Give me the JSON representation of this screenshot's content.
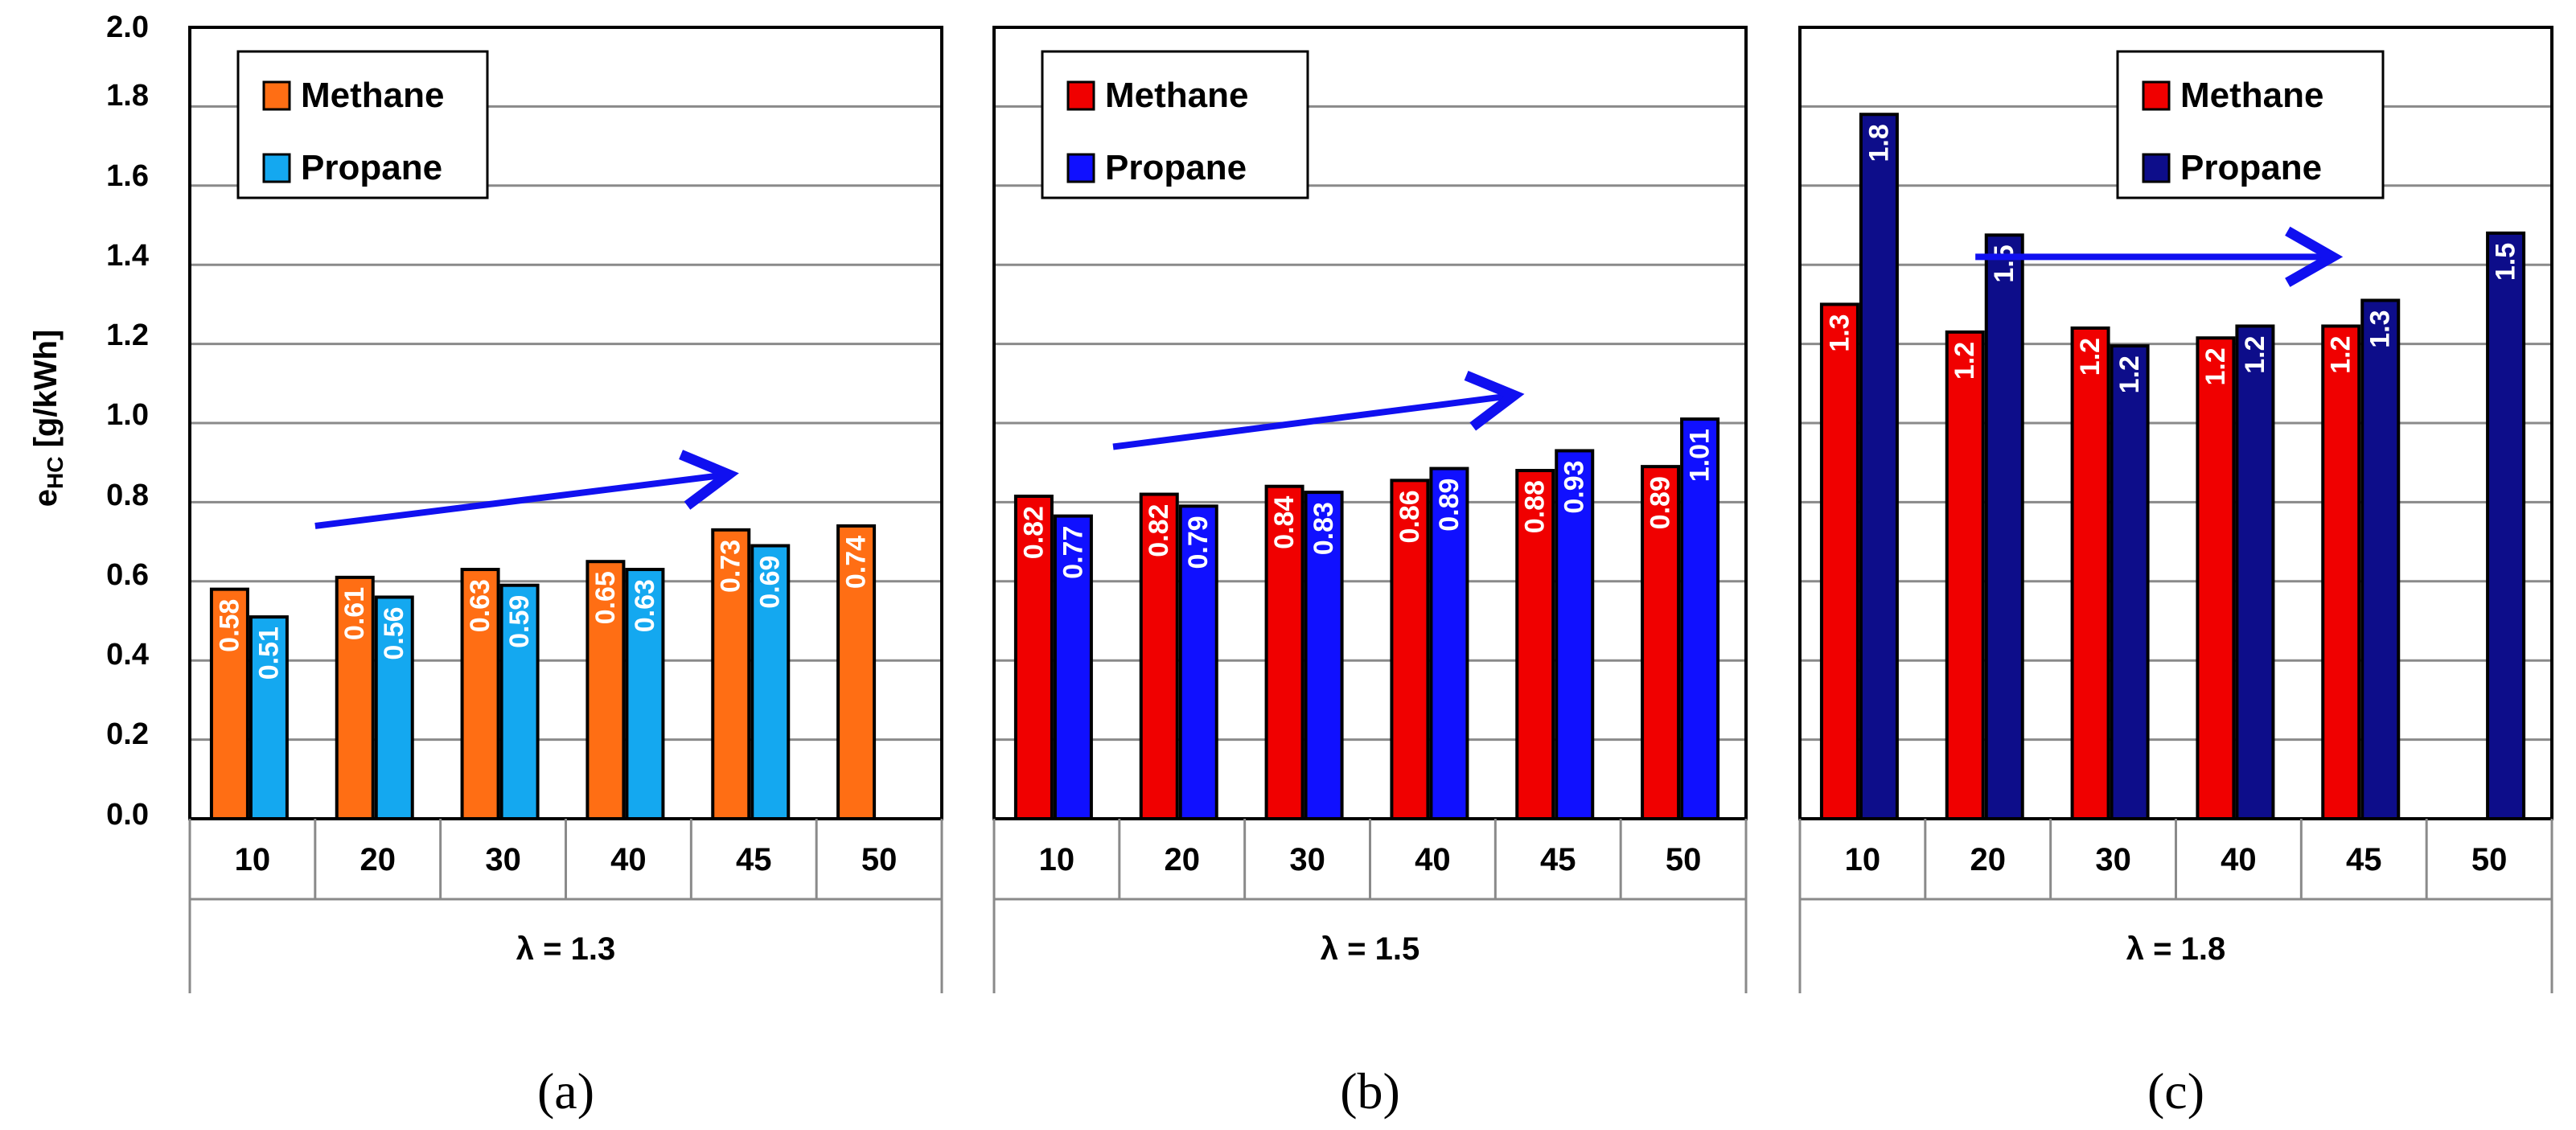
{
  "colors": {
    "methane_a": "#FF6E14",
    "propane_a": "#14A8F0",
    "methane_b": "#F00000",
    "propane_b": "#1010FF",
    "methane_c": "#F00000",
    "propane_c": "#0D0D8A",
    "arrow": "#1010F0"
  },
  "y_axis": {
    "label_main": "e",
    "label_sub": "HC",
    "label_rest": " [g/kWh]",
    "ticks": [
      "0.0",
      "0.2",
      "0.4",
      "0.6",
      "0.8",
      "1.0",
      "1.2",
      "1.4",
      "1.6",
      "1.8",
      "2.0"
    ]
  },
  "chart_data": [
    {
      "type": "bar",
      "panel": "(a)",
      "group_label": "λ = 1.3",
      "categories": [
        "10",
        "20",
        "30",
        "40",
        "45",
        "50"
      ],
      "ylim": [
        0,
        2.0
      ],
      "ylabel": "eHC [g/kWh]",
      "legend": [
        "Methane",
        "Propane"
      ],
      "legend_position": "top-left",
      "series": [
        {
          "name": "Methane",
          "values": [
            0.58,
            0.61,
            0.63,
            0.65,
            0.73,
            0.74
          ],
          "labels": [
            "0.58",
            "0.61",
            "0.63",
            "0.65",
            "0.73",
            "0.74"
          ]
        },
        {
          "name": "Propane",
          "values": [
            0.51,
            0.56,
            0.59,
            0.63,
            0.69,
            null
          ],
          "labels": [
            "0.51",
            "0.56",
            "0.59",
            "0.63",
            "0.69",
            null
          ]
        }
      ],
      "arrow": {
        "from_category": 1.0,
        "to_category": 4.3,
        "from_value": 0.74,
        "to_value": 0.87
      }
    },
    {
      "type": "bar",
      "panel": "(b)",
      "group_label": "λ = 1.5",
      "categories": [
        "10",
        "20",
        "30",
        "40",
        "45",
        "50"
      ],
      "ylim": [
        0,
        2.0
      ],
      "legend": [
        "Methane",
        "Propane"
      ],
      "legend_position": "top-left",
      "series": [
        {
          "name": "Methane",
          "values": [
            0.815,
            0.82,
            0.84,
            0.855,
            0.88,
            0.89
          ],
          "labels": [
            "0.82",
            "0.82",
            "0.84",
            "0.86",
            "0.88",
            "0.89"
          ]
        },
        {
          "name": "Propane",
          "values": [
            0.765,
            0.79,
            0.825,
            0.885,
            0.93,
            1.01
          ],
          "labels": [
            "0.77",
            "0.79",
            "0.83",
            "0.89",
            "0.93",
            "1.01"
          ]
        }
      ],
      "arrow": {
        "from_category": 0.95,
        "to_category": 4.15,
        "from_value": 0.94,
        "to_value": 1.07
      }
    },
    {
      "type": "bar",
      "panel": "(c)",
      "group_label": "λ = 1.8",
      "categories": [
        "10",
        "20",
        "30",
        "40",
        "45",
        "50"
      ],
      "ylim": [
        0,
        2.0
      ],
      "legend": [
        "Methane",
        "Propane"
      ],
      "legend_position": "top-right",
      "series": [
        {
          "name": "Methane",
          "values": [
            1.3,
            1.23,
            1.24,
            1.215,
            1.245,
            null
          ],
          "labels": [
            "1.3",
            "1.2",
            "1.2",
            "1.2",
            "1.2",
            null
          ]
        },
        {
          "name": "Propane",
          "values": [
            1.78,
            1.475,
            1.195,
            1.245,
            1.31,
            1.48
          ],
          "labels": [
            "1.8",
            "1.5",
            "1.2",
            "1.2",
            "1.3",
            "1.5"
          ]
        }
      ],
      "arrow": {
        "from_category": 1.4,
        "to_category": 4.25,
        "from_value": 1.42,
        "to_value": 1.42
      }
    }
  ]
}
